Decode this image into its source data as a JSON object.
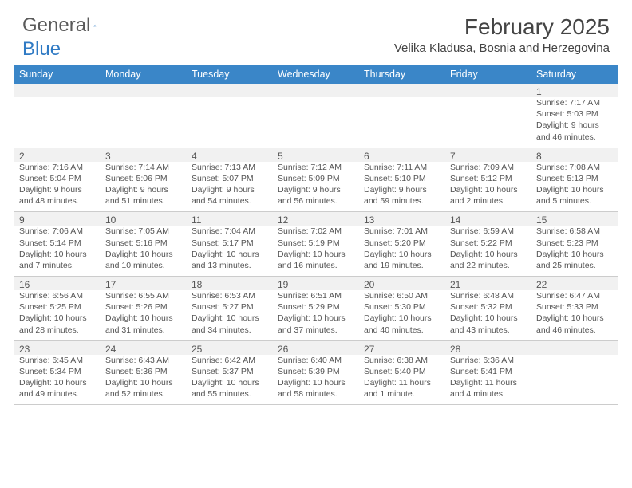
{
  "brand": {
    "part1": "General",
    "part2": "Blue"
  },
  "title": "February 2025",
  "location": "Velika Kladusa, Bosnia and Herzegovina",
  "colors": {
    "header_bg": "#3a86c8",
    "header_text": "#ffffff",
    "text": "#555555",
    "alt_row_bg": "#f1f1f1",
    "border": "#cccccc",
    "logo_gray": "#5a5a5a",
    "logo_blue": "#2f7ac4"
  },
  "day_names": [
    "Sunday",
    "Monday",
    "Tuesday",
    "Wednesday",
    "Thursday",
    "Friday",
    "Saturday"
  ],
  "weeks": [
    [
      null,
      null,
      null,
      null,
      null,
      null,
      {
        "n": "1",
        "sr": "7:17 AM",
        "ss": "5:03 PM",
        "dl": "9 hours and 46 minutes."
      }
    ],
    [
      {
        "n": "2",
        "sr": "7:16 AM",
        "ss": "5:04 PM",
        "dl": "9 hours and 48 minutes."
      },
      {
        "n": "3",
        "sr": "7:14 AM",
        "ss": "5:06 PM",
        "dl": "9 hours and 51 minutes."
      },
      {
        "n": "4",
        "sr": "7:13 AM",
        "ss": "5:07 PM",
        "dl": "9 hours and 54 minutes."
      },
      {
        "n": "5",
        "sr": "7:12 AM",
        "ss": "5:09 PM",
        "dl": "9 hours and 56 minutes."
      },
      {
        "n": "6",
        "sr": "7:11 AM",
        "ss": "5:10 PM",
        "dl": "9 hours and 59 minutes."
      },
      {
        "n": "7",
        "sr": "7:09 AM",
        "ss": "5:12 PM",
        "dl": "10 hours and 2 minutes."
      },
      {
        "n": "8",
        "sr": "7:08 AM",
        "ss": "5:13 PM",
        "dl": "10 hours and 5 minutes."
      }
    ],
    [
      {
        "n": "9",
        "sr": "7:06 AM",
        "ss": "5:14 PM",
        "dl": "10 hours and 7 minutes."
      },
      {
        "n": "10",
        "sr": "7:05 AM",
        "ss": "5:16 PM",
        "dl": "10 hours and 10 minutes."
      },
      {
        "n": "11",
        "sr": "7:04 AM",
        "ss": "5:17 PM",
        "dl": "10 hours and 13 minutes."
      },
      {
        "n": "12",
        "sr": "7:02 AM",
        "ss": "5:19 PM",
        "dl": "10 hours and 16 minutes."
      },
      {
        "n": "13",
        "sr": "7:01 AM",
        "ss": "5:20 PM",
        "dl": "10 hours and 19 minutes."
      },
      {
        "n": "14",
        "sr": "6:59 AM",
        "ss": "5:22 PM",
        "dl": "10 hours and 22 minutes."
      },
      {
        "n": "15",
        "sr": "6:58 AM",
        "ss": "5:23 PM",
        "dl": "10 hours and 25 minutes."
      }
    ],
    [
      {
        "n": "16",
        "sr": "6:56 AM",
        "ss": "5:25 PM",
        "dl": "10 hours and 28 minutes."
      },
      {
        "n": "17",
        "sr": "6:55 AM",
        "ss": "5:26 PM",
        "dl": "10 hours and 31 minutes."
      },
      {
        "n": "18",
        "sr": "6:53 AM",
        "ss": "5:27 PM",
        "dl": "10 hours and 34 minutes."
      },
      {
        "n": "19",
        "sr": "6:51 AM",
        "ss": "5:29 PM",
        "dl": "10 hours and 37 minutes."
      },
      {
        "n": "20",
        "sr": "6:50 AM",
        "ss": "5:30 PM",
        "dl": "10 hours and 40 minutes."
      },
      {
        "n": "21",
        "sr": "6:48 AM",
        "ss": "5:32 PM",
        "dl": "10 hours and 43 minutes."
      },
      {
        "n": "22",
        "sr": "6:47 AM",
        "ss": "5:33 PM",
        "dl": "10 hours and 46 minutes."
      }
    ],
    [
      {
        "n": "23",
        "sr": "6:45 AM",
        "ss": "5:34 PM",
        "dl": "10 hours and 49 minutes."
      },
      {
        "n": "24",
        "sr": "6:43 AM",
        "ss": "5:36 PM",
        "dl": "10 hours and 52 minutes."
      },
      {
        "n": "25",
        "sr": "6:42 AM",
        "ss": "5:37 PM",
        "dl": "10 hours and 55 minutes."
      },
      {
        "n": "26",
        "sr": "6:40 AM",
        "ss": "5:39 PM",
        "dl": "10 hours and 58 minutes."
      },
      {
        "n": "27",
        "sr": "6:38 AM",
        "ss": "5:40 PM",
        "dl": "11 hours and 1 minute."
      },
      {
        "n": "28",
        "sr": "6:36 AM",
        "ss": "5:41 PM",
        "dl": "11 hours and 4 minutes."
      },
      null
    ]
  ],
  "labels": {
    "sunrise": "Sunrise: ",
    "sunset": "Sunset: ",
    "daylight": "Daylight: "
  }
}
